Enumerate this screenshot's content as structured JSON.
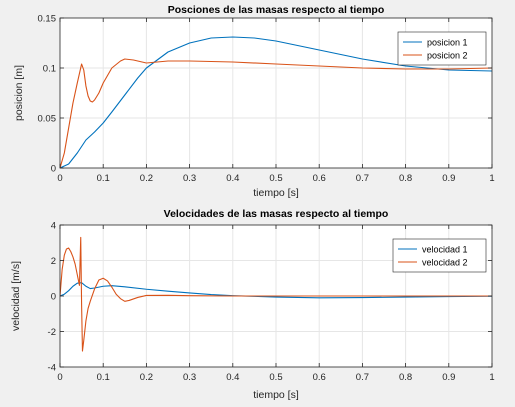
{
  "chart_data": [
    {
      "type": "line",
      "title": "Posciones de las masas respecto al tiempo",
      "xlabel": "tiempo [s]",
      "ylabel": "posicion [m]",
      "xlim": [
        0,
        1
      ],
      "ylim": [
        0,
        0.15
      ],
      "xticks": [
        0,
        0.1,
        0.2,
        0.3,
        0.4,
        0.5,
        0.6,
        0.7,
        0.8,
        0.9,
        1
      ],
      "xtick_labels": [
        "0",
        "0.1",
        "0.2",
        "0.3",
        "0.4",
        "0.5",
        "0.6",
        "0.7",
        "0.8",
        "0.9",
        "1"
      ],
      "yticks": [
        0,
        0.05,
        0.1,
        0.15
      ],
      "ytick_labels": [
        "0",
        "0.05",
        "0.1",
        "0.15"
      ],
      "grid": true,
      "legend_position": "top-right",
      "series": [
        {
          "name": "posicion 1",
          "color": "#0072bd",
          "x": [
            0,
            0.02,
            0.04,
            0.06,
            0.08,
            0.1,
            0.12,
            0.15,
            0.18,
            0.2,
            0.25,
            0.3,
            0.35,
            0.4,
            0.45,
            0.5,
            0.6,
            0.7,
            0.8,
            0.9,
            1.0
          ],
          "y": [
            0,
            0.004,
            0.015,
            0.028,
            0.036,
            0.045,
            0.056,
            0.073,
            0.09,
            0.1,
            0.116,
            0.125,
            0.13,
            0.131,
            0.13,
            0.127,
            0.118,
            0.109,
            0.102,
            0.098,
            0.097
          ]
        },
        {
          "name": "posicion 2",
          "color": "#d95319",
          "x": [
            0,
            0.01,
            0.02,
            0.03,
            0.04,
            0.05,
            0.055,
            0.06,
            0.065,
            0.07,
            0.075,
            0.08,
            0.09,
            0.1,
            0.12,
            0.14,
            0.15,
            0.17,
            0.2,
            0.25,
            0.3,
            0.4,
            0.5,
            0.6,
            0.7,
            0.8,
            0.9,
            1.0
          ],
          "y": [
            0,
            0.015,
            0.04,
            0.065,
            0.085,
            0.104,
            0.098,
            0.082,
            0.072,
            0.067,
            0.066,
            0.068,
            0.075,
            0.085,
            0.1,
            0.107,
            0.109,
            0.108,
            0.105,
            0.107,
            0.107,
            0.106,
            0.104,
            0.102,
            0.1,
            0.099,
            0.099,
            0.1
          ]
        }
      ]
    },
    {
      "type": "line",
      "title": "Velocidades de las masas respecto al tiempo",
      "xlabel": "tiempo [s]",
      "ylabel": "velocidad [m/s]",
      "xlim": [
        0,
        1
      ],
      "ylim": [
        -4,
        4
      ],
      "xticks": [
        0,
        0.1,
        0.2,
        0.3,
        0.4,
        0.5,
        0.6,
        0.7,
        0.8,
        0.9,
        1
      ],
      "xtick_labels": [
        "0",
        "0.1",
        "0.2",
        "0.3",
        "0.4",
        "0.5",
        "0.6",
        "0.7",
        "0.8",
        "0.9",
        "1"
      ],
      "yticks": [
        -4,
        -2,
        0,
        2,
        4
      ],
      "ytick_labels": [
        "-4",
        "-2",
        "0",
        "2",
        "4"
      ],
      "grid": true,
      "legend_position": "top-right",
      "series": [
        {
          "name": "velocidad 1",
          "color": "#0072bd",
          "x": [
            0,
            0.01,
            0.02,
            0.03,
            0.04,
            0.05,
            0.06,
            0.07,
            0.08,
            0.1,
            0.12,
            0.15,
            0.2,
            0.25,
            0.3,
            0.35,
            0.4,
            0.45,
            0.5,
            0.6,
            0.7,
            0.8,
            0.9,
            1.0
          ],
          "y": [
            0,
            0.1,
            0.3,
            0.55,
            0.72,
            0.75,
            0.55,
            0.42,
            0.45,
            0.55,
            0.58,
            0.52,
            0.38,
            0.27,
            0.17,
            0.08,
            0.02,
            -0.02,
            -0.06,
            -0.1,
            -0.09,
            -0.06,
            -0.03,
            -0.01
          ]
        },
        {
          "name": "velocidad 2",
          "color": "#d95319",
          "x": [
            0,
            0.005,
            0.01,
            0.015,
            0.02,
            0.025,
            0.03,
            0.035,
            0.04,
            0.045,
            0.048,
            0.05,
            0.052,
            0.055,
            0.06,
            0.065,
            0.07,
            0.08,
            0.09,
            0.1,
            0.11,
            0.12,
            0.13,
            0.14,
            0.15,
            0.16,
            0.18,
            0.2,
            0.25,
            0.3,
            0.4,
            0.5,
            0.6,
            0.7,
            0.8,
            0.9,
            1.0
          ],
          "y": [
            0,
            1.5,
            2.3,
            2.65,
            2.7,
            2.5,
            2.2,
            1.8,
            1.2,
            0.6,
            3.3,
            -0.5,
            -3.1,
            -2.5,
            -1.4,
            -0.7,
            -0.3,
            0.4,
            0.9,
            1.0,
            0.85,
            0.5,
            0.1,
            -0.15,
            -0.3,
            -0.25,
            -0.08,
            0.03,
            0.04,
            0.02,
            0.0,
            0.0,
            0.0,
            0.0,
            0.0,
            0.0,
            0.0
          ]
        }
      ]
    }
  ]
}
